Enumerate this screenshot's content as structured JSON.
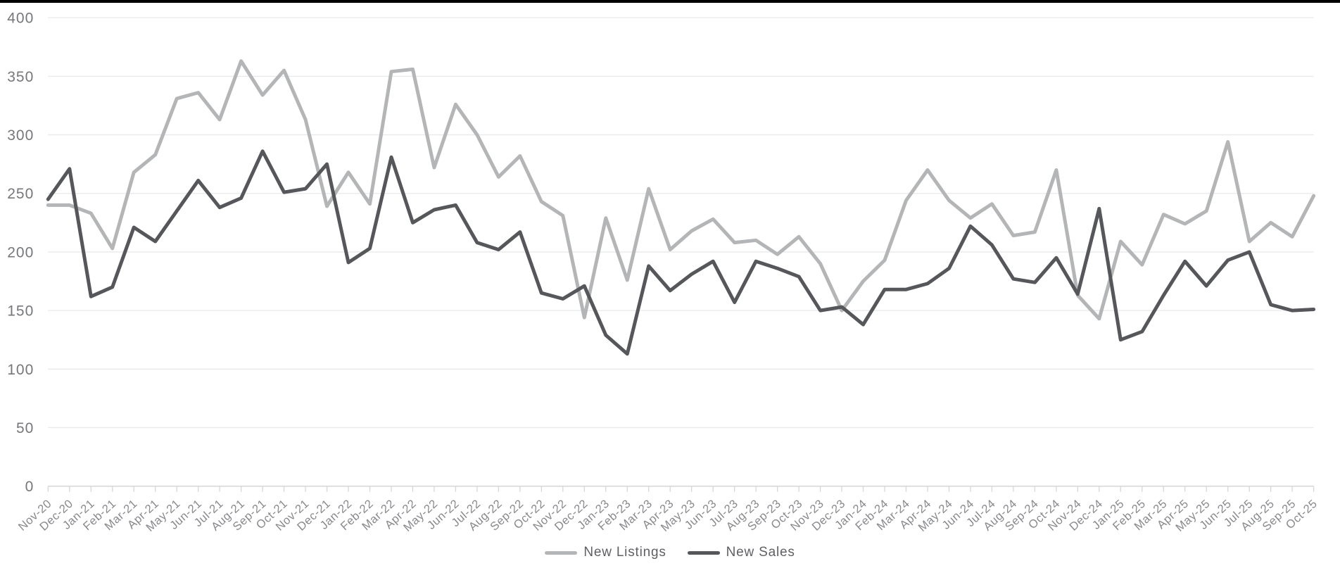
{
  "chart_data": {
    "type": "line",
    "title": "",
    "xlabel": "",
    "ylabel": "",
    "ylim": [
      0,
      400
    ],
    "y_ticks": [
      0,
      50,
      100,
      150,
      200,
      250,
      300,
      350,
      400
    ],
    "grid": "horizontal",
    "legend_position": "bottom-center",
    "categories": [
      "Nov-20",
      "Dec-20",
      "Jan-21",
      "Feb-21",
      "Mar-21",
      "Apr-21",
      "May-21",
      "Jun-21",
      "Jul-21",
      "Aug-21",
      "Sep-21",
      "Oct-21",
      "Nov-21",
      "Dec-21",
      "Jan-22",
      "Feb-22",
      "Mar-22",
      "Apr-22",
      "May-22",
      "Jun-22",
      "Jul-22",
      "Aug-22",
      "Sep-22",
      "Oct-22",
      "Nov-22",
      "Dec-22",
      "Jan-23",
      "Feb-23",
      "Mar-23",
      "Apr-23",
      "May-23",
      "Jun-23",
      "Jul-23",
      "Aug-23",
      "Sep-23",
      "Oct-23",
      "Nov-23",
      "Dec-23",
      "Jan-24",
      "Feb-24",
      "Mar-24",
      "Apr-24",
      "May-24",
      "Jun-24",
      "Jul-24",
      "Aug-24",
      "Sep-24",
      "Oct-24",
      "Nov-24",
      "Dec-24",
      "Jan-25",
      "Feb-25",
      "Mar-25",
      "Apr-25",
      "May-25",
      "Jun-25",
      "Jul-25",
      "Aug-25",
      "Sep-25",
      "Oct-25"
    ],
    "series": [
      {
        "name": "New Listings",
        "color": "#b4b5b7",
        "values": [
          240,
          240,
          233,
          203,
          268,
          283,
          331,
          336,
          313,
          363,
          334,
          355,
          313,
          239,
          268,
          241,
          354,
          356,
          272,
          326,
          300,
          264,
          282,
          243,
          231,
          144,
          229,
          176,
          254,
          202,
          218,
          228,
          208,
          210,
          198,
          213,
          190,
          150,
          175,
          193,
          244,
          270,
          244,
          229,
          241,
          214,
          217,
          270,
          163,
          143,
          209,
          189,
          232,
          224,
          235,
          294,
          209,
          225,
          213,
          248
        ]
      },
      {
        "name": "New Sales",
        "color": "#56575b",
        "values": [
          245,
          271,
          162,
          170,
          221,
          209,
          235,
          261,
          238,
          246,
          286,
          251,
          254,
          275,
          191,
          203,
          281,
          225,
          236,
          240,
          208,
          202,
          217,
          165,
          160,
          171,
          129,
          113,
          188,
          167,
          181,
          192,
          157,
          192,
          186,
          179,
          150,
          153,
          138,
          168,
          168,
          173,
          186,
          222,
          206,
          177,
          174,
          195,
          164,
          237,
          125,
          132,
          163,
          192,
          171,
          193,
          200,
          155,
          150,
          151
        ]
      }
    ]
  },
  "colors": {
    "background": "#ffffff",
    "top_bar": "#000000",
    "gridline": "#e9e9eb",
    "axis_line": "#d6d7d9",
    "tick_mark": "#d6d7d9",
    "y_label": "#76777b",
    "x_label": "#87888c",
    "legend_text": "#5f6064"
  }
}
